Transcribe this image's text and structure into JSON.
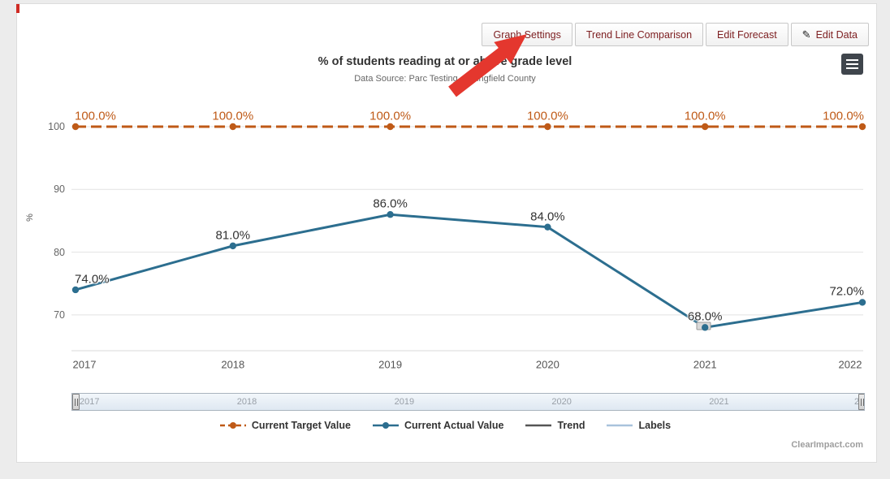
{
  "card": {
    "accent_color": "#cf2b24"
  },
  "toolbar": {
    "pencil_glyph": "✎",
    "buttons": [
      {
        "label": "Graph Settings"
      },
      {
        "label": "Trend Line Comparison"
      },
      {
        "label": "Edit Forecast"
      },
      {
        "label": "Edit Data"
      }
    ]
  },
  "export_menu": {
    "icon": "hamburger"
  },
  "annotation": {
    "arrow_color": "#e4372e",
    "points_to": "Graph Settings"
  },
  "chart_data": {
    "type": "line",
    "title": "% of students reading at or above grade level",
    "subtitle": "Data Source: Parc Testing, Springfield County",
    "ylabel": "%",
    "xlabel": "",
    "categories": [
      "2017",
      "2018",
      "2019",
      "2020",
      "2021",
      "2022"
    ],
    "yticks": [
      100,
      90,
      80,
      70
    ],
    "ylim": [
      64,
      104
    ],
    "grid": true,
    "legend_position": "bottom",
    "series": [
      {
        "name": "Current Target Value",
        "type": "dashed-line",
        "color": "#bf5a17",
        "label_color": "#bf5a17",
        "values": [
          100,
          100,
          100,
          100,
          100,
          100
        ],
        "point_labels": [
          "100.0%",
          "100.0%",
          "100.0%",
          "100.0%",
          "100.0%",
          "100.0%"
        ]
      },
      {
        "name": "Current Actual Value",
        "type": "line",
        "color": "#2c6e8f",
        "label_color": "#333333",
        "values": [
          74,
          81,
          86,
          84,
          68,
          72
        ],
        "point_labels": [
          "74.0%",
          "81.0%",
          "86.0%",
          "84.0%",
          "68.0%",
          "72.0%"
        ]
      }
    ],
    "legend": [
      {
        "label": "Current Target Value",
        "color": "#bf5a17",
        "style": "dashed-dot"
      },
      {
        "label": "Current Actual Value",
        "color": "#2c6e8f",
        "style": "line-dot"
      },
      {
        "label": "Trend",
        "color": "#555555",
        "style": "line"
      },
      {
        "label": "Labels",
        "color": "#a9c3dc",
        "style": "line"
      }
    ],
    "navigator_labels": [
      "2017",
      "2018",
      "2019",
      "2020",
      "2021",
      "2022"
    ]
  },
  "footer": {
    "credit": "ClearImpact.com"
  }
}
